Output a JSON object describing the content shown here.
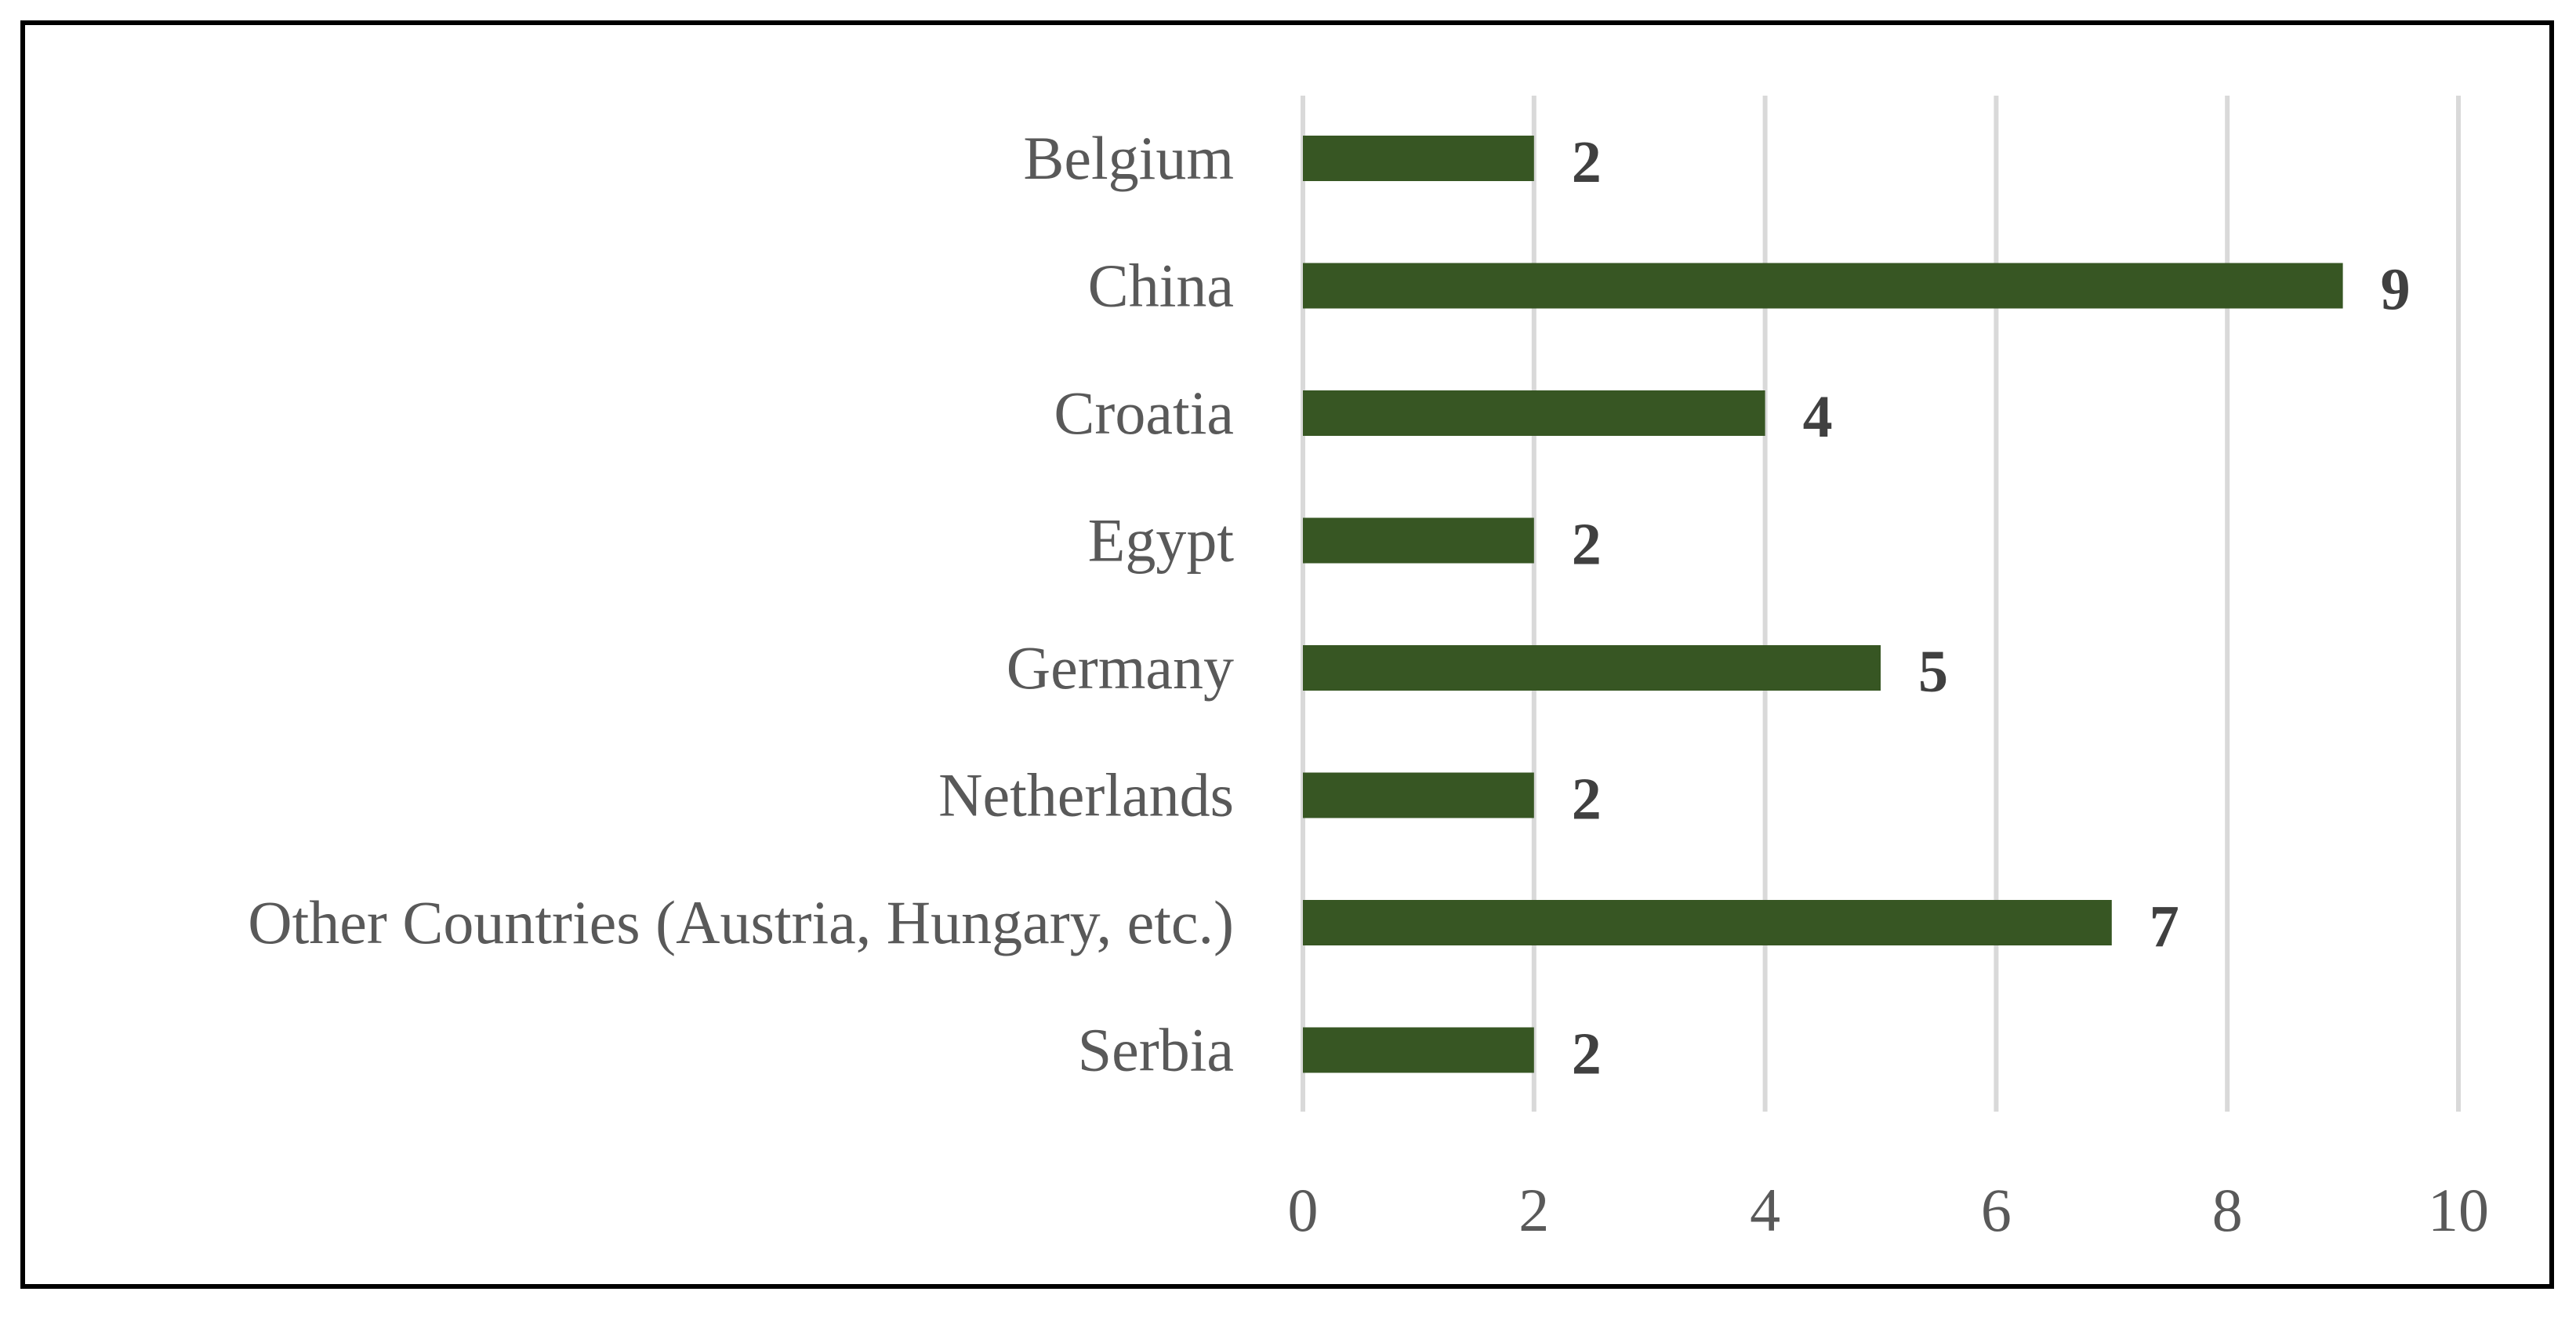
{
  "chart_data": {
    "type": "bar",
    "orientation": "horizontal",
    "title": "",
    "xlabel": "",
    "ylabel": "",
    "categories": [
      "Belgium",
      "China",
      "Croatia",
      "Egypt",
      "Germany",
      "Netherlands",
      "Other Countries (Austria, Hungary, etc.)",
      "Serbia"
    ],
    "values": [
      2,
      9,
      4,
      2,
      5,
      2,
      7,
      2
    ],
    "data_labels": [
      "2",
      "9",
      "4",
      "2",
      "5",
      "2",
      "7",
      "2"
    ],
    "xlim": [
      0,
      10
    ],
    "x_ticks": [
      "0",
      "2",
      "4",
      "6",
      "8",
      "10"
    ],
    "grid": true,
    "legend": "none",
    "bar_color": "#375623",
    "gridline_color": "#d9d9d9",
    "label_color": "#595959",
    "data_label_color": "#404040",
    "frame_color": "#000000"
  }
}
